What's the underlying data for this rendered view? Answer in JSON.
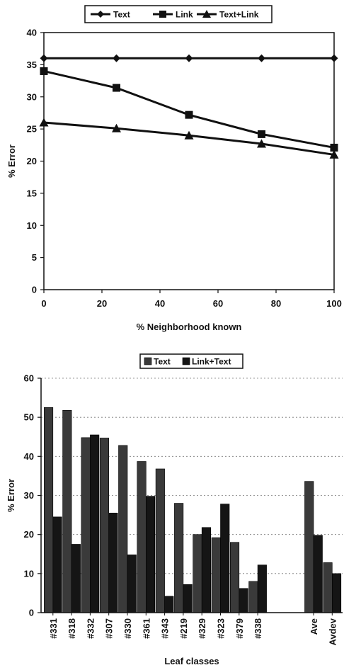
{
  "chart_data": [
    {
      "type": "line",
      "x": [
        0,
        25,
        50,
        75,
        100
      ],
      "series": [
        {
          "name": "Text",
          "marker": "diamond",
          "values": [
            36,
            36,
            36,
            36,
            36
          ]
        },
        {
          "name": "Link",
          "marker": "square",
          "values": [
            34,
            31.4,
            27.2,
            24.2,
            22.1
          ]
        },
        {
          "name": "Text+Link",
          "marker": "triangle",
          "values": [
            26,
            25.1,
            24,
            22.7,
            21
          ]
        }
      ],
      "xlabel": "% Neighborhood known",
      "ylabel": "% Error",
      "xlim": [
        0,
        100
      ],
      "ylim": [
        0,
        40
      ],
      "xticks": [
        "0",
        "20",
        "40",
        "60",
        "80",
        "100"
      ],
      "yticks": [
        "0",
        "5",
        "10",
        "15",
        "20",
        "25",
        "30",
        "35",
        "40"
      ],
      "legend": "top",
      "grid": false
    },
    {
      "type": "bar",
      "categories": [
        "#331",
        "#318",
        "#332",
        "#307",
        "#330",
        "#361",
        "#343",
        "#219",
        "#329",
        "#323",
        "#379",
        "#338",
        "Ave",
        "Avdev"
      ],
      "series": [
        {
          "name": "Text",
          "values": [
            52.5,
            51.8,
            44.8,
            44.7,
            42.8,
            38.7,
            36.8,
            28,
            20,
            19.2,
            18,
            8,
            33.6,
            12.8
          ]
        },
        {
          "name": "Link+Text",
          "values": [
            24.5,
            17.5,
            45.5,
            25.5,
            14.8,
            29.8,
            4.2,
            7.2,
            21.8,
            27.8,
            6.2,
            12.2,
            19.8,
            10
          ]
        }
      ],
      "xlabel": "Leaf classes",
      "ylabel": "% Error",
      "ylim": [
        0,
        60
      ],
      "yticks": [
        "0",
        "10",
        "20",
        "30",
        "40",
        "50",
        "60"
      ],
      "legend": "top",
      "grid": "horizontal dotted",
      "colors": {
        "Text": "#3a3a3a",
        "Link+Text": "#151515"
      }
    }
  ]
}
